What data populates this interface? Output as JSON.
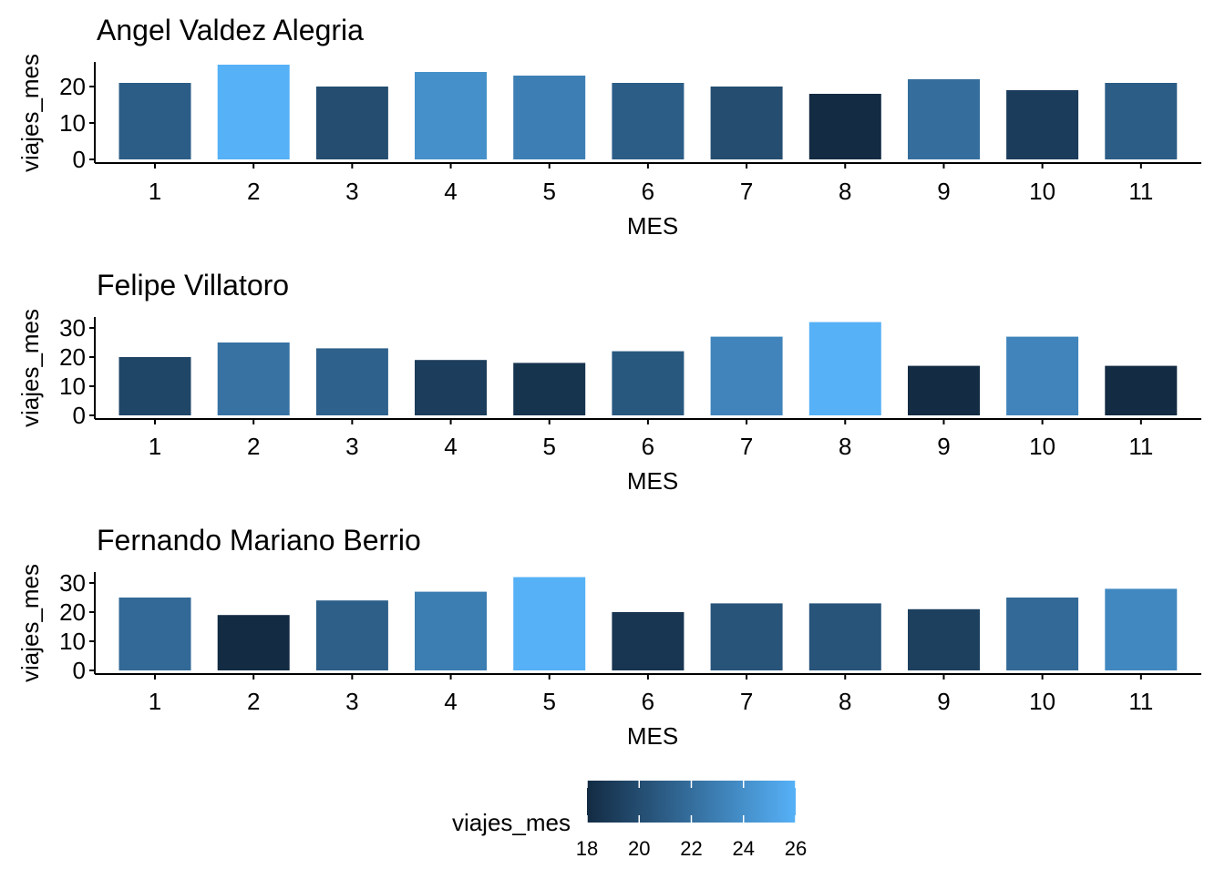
{
  "chart_data": {
    "type": "bar",
    "categories": [
      "1",
      "2",
      "3",
      "4",
      "5",
      "6",
      "7",
      "8",
      "9",
      "10",
      "11"
    ],
    "xlabel": "MES",
    "ylabel": "viajes_mes",
    "panels": [
      {
        "title": "Angel Valdez Alegria",
        "values": [
          21,
          26,
          20,
          24,
          23,
          21,
          20,
          18,
          22,
          19,
          21
        ],
        "ylim": [
          0,
          26
        ],
        "yticks": [
          "0",
          "10",
          "20"
        ]
      },
      {
        "title": "Felipe Villatoro",
        "values": [
          20,
          25,
          23,
          19,
          18,
          22,
          27,
          32,
          17,
          27,
          17
        ],
        "ylim": [
          0,
          32
        ],
        "yticks": [
          "0",
          "10",
          "20",
          "30"
        ]
      },
      {
        "title": "Fernando Mariano Berrio",
        "values": [
          25,
          19,
          24,
          27,
          32,
          20,
          23,
          23,
          21,
          25,
          28
        ],
        "ylim": [
          0,
          32
        ],
        "yticks": [
          "0",
          "10",
          "20",
          "30"
        ]
      }
    ],
    "legend": {
      "title": "viajes_mes",
      "position": "bottom",
      "range": [
        18,
        26
      ],
      "ticks": [
        "18",
        "20",
        "22",
        "24",
        "26"
      ],
      "color_low": "#132B43",
      "color_high": "#56B1F7"
    },
    "grid": false
  }
}
